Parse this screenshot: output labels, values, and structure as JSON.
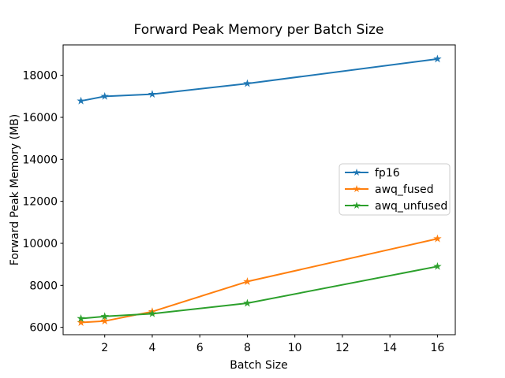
{
  "figure": {
    "background": "#ffffff",
    "spine_color": "#000000",
    "text_color": "#000000"
  },
  "chart_data": {
    "type": "line",
    "title": "Forward Peak Memory per Batch Size",
    "xlabel": "Batch Size",
    "ylabel": "Forward Peak Memory (MB)",
    "x": [
      1,
      2,
      4,
      8,
      16
    ],
    "series": [
      {
        "name": "fp16",
        "color": "#1f77b4",
        "values": [
          16780,
          17000,
          17100,
          17610,
          18780
        ]
      },
      {
        "name": "awq_fused",
        "color": "#ff7f0e",
        "values": [
          6230,
          6300,
          6750,
          8180,
          10220
        ]
      },
      {
        "name": "awq_unfused",
        "color": "#2ca02c",
        "values": [
          6420,
          6520,
          6650,
          7150,
          8900
        ]
      }
    ],
    "marker": "star",
    "xticks": [
      2,
      4,
      6,
      8,
      10,
      12,
      14,
      16
    ],
    "yticks": [
      6000,
      8000,
      10000,
      12000,
      14000,
      16000,
      18000
    ],
    "xlim": [
      0.25,
      16.75
    ],
    "ylim": [
      5650,
      19450
    ],
    "grid": false,
    "legend": {
      "position": "center right",
      "border_color": "#cccccc",
      "background": "rgba(255,255,255,0.85)"
    }
  }
}
